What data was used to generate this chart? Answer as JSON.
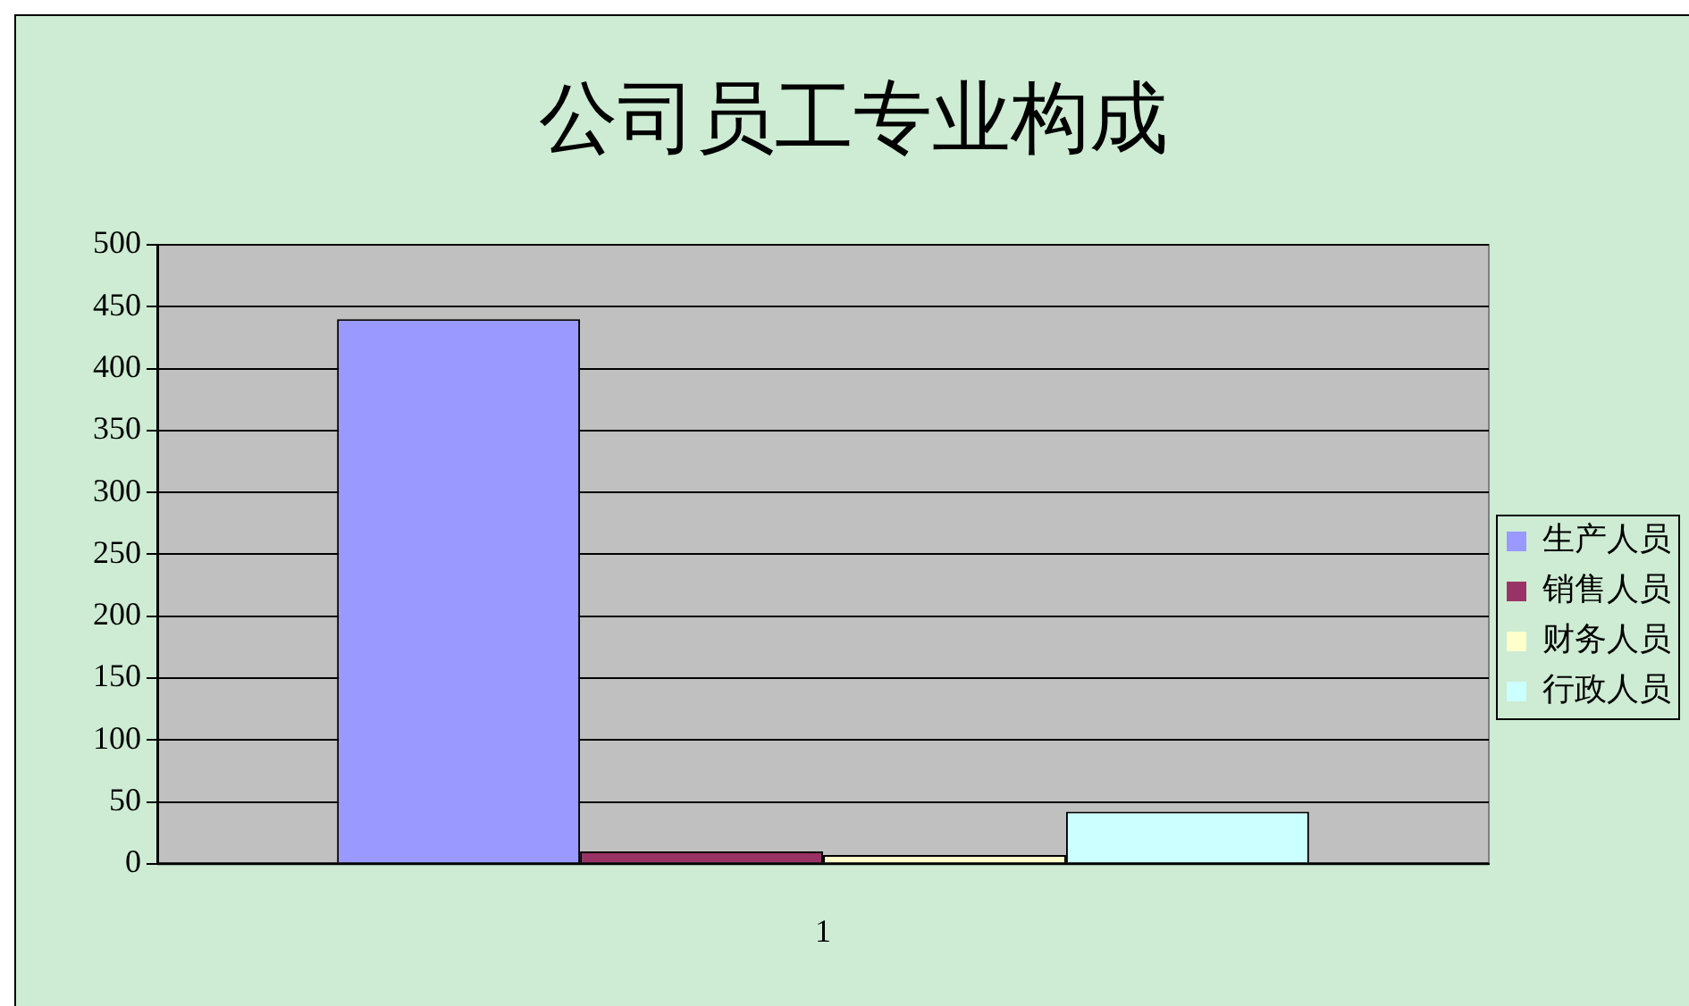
{
  "chart_data": {
    "type": "bar",
    "title": "公司员工专业构成",
    "categories": [
      "1"
    ],
    "series": [
      {
        "name": "生产人员",
        "color": "#9999ff",
        "values": [
          440
        ]
      },
      {
        "name": "销售人员",
        "color": "#993366",
        "values": [
          10
        ]
      },
      {
        "name": "财务人员",
        "color": "#ffffcc",
        "values": [
          7
        ]
      },
      {
        "name": "行政人员",
        "color": "#ccffff",
        "values": [
          42
        ]
      }
    ],
    "ylim": [
      0,
      500
    ],
    "yticks": [
      0,
      50,
      100,
      150,
      200,
      250,
      300,
      350,
      400,
      450,
      500
    ],
    "grid": "y",
    "legend": "right"
  }
}
